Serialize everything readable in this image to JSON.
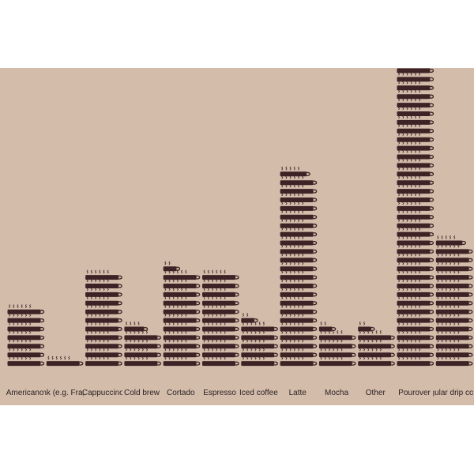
{
  "chart_data": {
    "type": "bar",
    "icon": "coffee-cup-icon",
    "cups_per_icon": 5,
    "background_color": "#d4bcab",
    "icon_color": "#3d2325",
    "categories": [
      "Americano",
      "Blend drink (e.g. Frappuccino)",
      "Cappuccino",
      "Cold brew",
      "Cortado",
      "Espresso",
      "Iced coffee",
      "Latte",
      "Mocha",
      "Other",
      "Pourover",
      "Regular drip coffee"
    ],
    "values": [
      35,
      5,
      55,
      23,
      57,
      55,
      27,
      114,
      22,
      22,
      183,
      74
    ],
    "title": "",
    "xlabel": "",
    "ylabel": "",
    "grid": false,
    "legend": "none"
  }
}
